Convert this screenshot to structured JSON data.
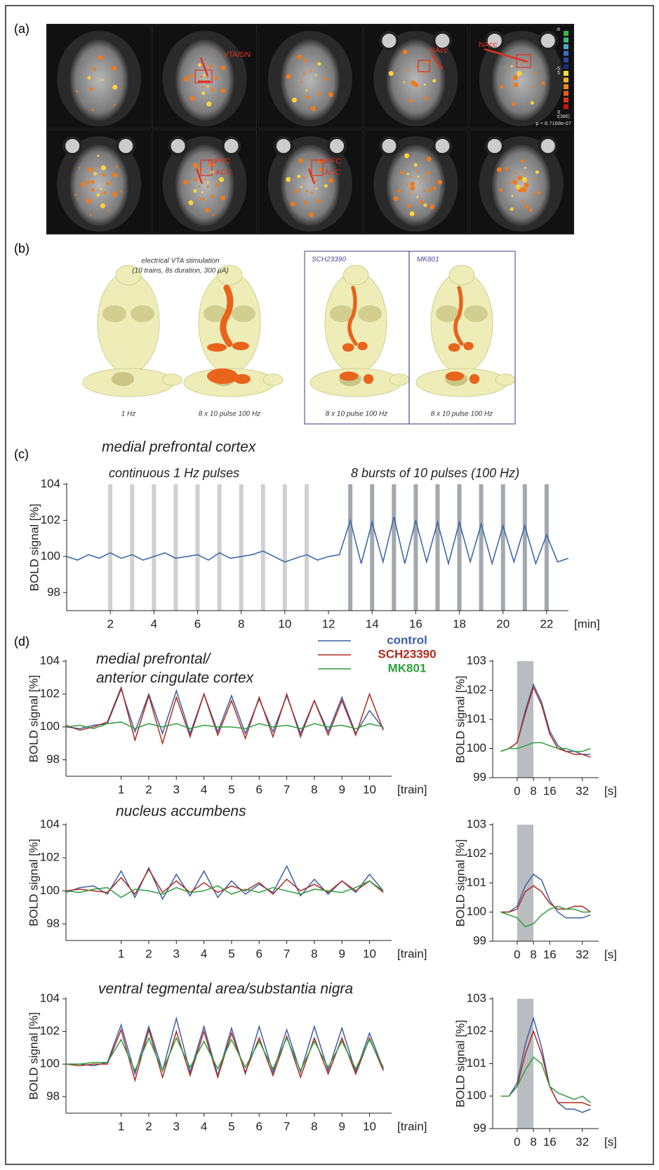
{
  "panel_labels": [
    "(a)",
    "(b)",
    "(c)",
    "(d)"
  ],
  "panel_a": {
    "region_labels": [
      "VTA/SN",
      "NAcc",
      "NAcc",
      "mPFC",
      "ACC",
      "mPFC",
      "ACC"
    ],
    "colorbar_labels": [
      "-8",
      "-5",
      "5",
      "8"
    ],
    "stat_label": "t(386)",
    "p_label": "p < 8.7168e-07"
  },
  "panel_b": {
    "title": "electrical VTA stimulation",
    "subtitle": "(10 trains, 8s duration, 300 µA)",
    "captions": [
      "1 Hz",
      "8 x 10 pulse 100 Hz",
      "8 x 10 pulse 100 Hz",
      "8 x 10 pulse 100 Hz"
    ],
    "box_labels": [
      "SCH23390",
      "MK801"
    ]
  },
  "chart_data": [
    {
      "type": "line",
      "title": "medial prefrontal cortex",
      "annotations": [
        "continuous 1 Hz pulses",
        "8 bursts of 10 pulses (100 Hz)"
      ],
      "ylabel": "BOLD signal [%]",
      "xlabel": "[min]",
      "x": [
        0,
        0.5,
        1,
        1.5,
        2,
        2.5,
        3,
        3.5,
        4,
        4.5,
        5,
        5.5,
        6,
        6.5,
        7,
        7.5,
        8,
        8.5,
        9,
        9.5,
        10,
        10.5,
        11,
        11.5,
        12,
        12.5,
        13,
        13.5,
        14,
        14.5,
        15,
        15.5,
        16,
        16.5,
        17,
        17.5,
        18,
        18.5,
        19,
        19.5,
        20,
        20.5,
        21,
        21.5,
        22,
        22.5,
        23
      ],
      "values": [
        100,
        99.8,
        100.1,
        99.9,
        100.2,
        99.9,
        100.1,
        99.8,
        100,
        100.2,
        99.9,
        100,
        100.1,
        99.8,
        100.2,
        99.9,
        100,
        100.1,
        100.3,
        100,
        99.7,
        99.9,
        100.1,
        99.8,
        100,
        100.1,
        102,
        99.6,
        101.9,
        99.7,
        102.2,
        99.6,
        102,
        99.7,
        101.9,
        99.6,
        101.9,
        99.7,
        101.8,
        99.6,
        101.7,
        99.7,
        101.7,
        99.6,
        101.2,
        99.7,
        99.9
      ],
      "color": "#3d6aa8",
      "stimuli": [
        {
          "times": [
            2,
            3,
            4,
            5,
            6,
            7,
            8,
            9,
            10,
            11
          ],
          "color": "#d0d0d0"
        },
        {
          "times": [
            13,
            14,
            15,
            16,
            17,
            18,
            19,
            20,
            21,
            22
          ],
          "color": "#a3a7ae"
        }
      ],
      "xlim": [
        0,
        23
      ],
      "ylim": [
        97,
        104
      ],
      "xticks": [
        2,
        4,
        6,
        8,
        10,
        12,
        14,
        16,
        18,
        20,
        22
      ],
      "yticks": [
        98,
        100,
        102,
        104
      ]
    },
    {
      "type": "line",
      "title": [
        "medial prefrontal/",
        "anterior cingulate cortex"
      ],
      "ylabel": "BOLD signal [%]",
      "xlabel": "[train]",
      "legend": "top",
      "x": [
        -1,
        -0.5,
        0,
        0.5,
        1,
        1.5,
        2,
        2.5,
        3,
        3.5,
        4,
        4.5,
        5,
        5.5,
        6,
        6.5,
        7,
        7.5,
        8,
        8.5,
        9,
        9.5,
        10,
        10.5
      ],
      "series": [
        {
          "name": "control",
          "color": "#3b5fa8",
          "values": [
            100,
            99.9,
            100.1,
            100.2,
            102.3,
            99.7,
            102,
            99.6,
            102.2,
            99.6,
            102,
            99.7,
            101.9,
            99.6,
            101.7,
            99.7,
            101.9,
            99.6,
            101.6,
            99.7,
            101.8,
            99.6,
            101,
            99.9
          ]
        },
        {
          "name": "SCH23390",
          "color": "#b02a1e",
          "values": [
            100.1,
            99.8,
            100,
            100.3,
            102.4,
            99.2,
            101.9,
            99,
            101.8,
            99.4,
            102,
            99.5,
            101.6,
            99.3,
            101.8,
            99.4,
            102,
            99.4,
            101.6,
            99.5,
            101.6,
            99.5,
            102,
            99.8
          ]
        },
        {
          "name": "MK801",
          "color": "#2e9e3e",
          "values": [
            100,
            100.1,
            99.9,
            100.2,
            100.3,
            99.9,
            100.2,
            100,
            100.2,
            99.9,
            100.1,
            100,
            100,
            99.9,
            100.2,
            100,
            100.1,
            99.9,
            100.2,
            100,
            100.1,
            99.9,
            100.2,
            100
          ]
        }
      ],
      "xlim": [
        -1,
        10.8
      ],
      "ylim": [
        97,
        104
      ],
      "xticks": [
        1,
        2,
        3,
        4,
        5,
        6,
        7,
        8,
        9,
        10
      ],
      "yticks": [
        98,
        100,
        102,
        104
      ]
    },
    {
      "type": "line",
      "title": "nucleus accumbens",
      "ylabel": "BOLD signal [%]",
      "xlabel": "[train]",
      "x": [
        -1,
        -0.5,
        0,
        0.5,
        1,
        1.5,
        2,
        2.5,
        3,
        3.5,
        4,
        4.5,
        5,
        5.5,
        6,
        6.5,
        7,
        7.5,
        8,
        8.5,
        9,
        9.5,
        10,
        10.5
      ],
      "series": [
        {
          "name": "control",
          "color": "#3b5fa8",
          "values": [
            99.9,
            100.2,
            100.3,
            99.8,
            101.2,
            99.6,
            101.4,
            99.5,
            101,
            99.7,
            101.2,
            99.6,
            100.6,
            99.8,
            100.4,
            99.9,
            101.5,
            99.7,
            100.7,
            99.8,
            100.6,
            99.9,
            101,
            100
          ]
        },
        {
          "name": "SCH23390",
          "color": "#b02a1e",
          "values": [
            100,
            100.1,
            100,
            99.9,
            100.8,
            99.8,
            101.3,
            99.9,
            100.6,
            99.9,
            100.5,
            99.9,
            100.3,
            100,
            100.5,
            99.8,
            100.7,
            100,
            100.4,
            99.9,
            100.6,
            100,
            100.6,
            99.9
          ]
        },
        {
          "name": "MK801",
          "color": "#2e9e3e",
          "values": [
            100,
            99.9,
            100.1,
            100.2,
            99.6,
            100.1,
            100,
            99.8,
            100.2,
            99.9,
            100,
            100.3,
            99.8,
            100.1,
            99.9,
            100.2,
            100,
            99.8,
            100.1,
            100,
            99.9,
            100.2,
            100.6,
            100
          ]
        }
      ],
      "xlim": [
        -1,
        10.8
      ],
      "ylim": [
        97,
        104
      ],
      "xticks": [
        1,
        2,
        3,
        4,
        5,
        6,
        7,
        8,
        9,
        10
      ],
      "yticks": [
        98,
        100,
        102,
        104
      ]
    },
    {
      "type": "line",
      "title": "ventral tegmental area/substantia nigra",
      "ylabel": "BOLD signal [%]",
      "xlabel": "[train]",
      "x": [
        -1,
        -0.5,
        0,
        0.5,
        1,
        1.5,
        2,
        2.5,
        3,
        3.5,
        4,
        4.5,
        5,
        5.5,
        6,
        6.5,
        7,
        7.5,
        8,
        8.5,
        9,
        9.5,
        10,
        10.5
      ],
      "series": [
        {
          "name": "control",
          "color": "#3b5fa8",
          "values": [
            100,
            100,
            99.9,
            100.1,
            102.4,
            99.4,
            102.3,
            99.6,
            102.8,
            99.5,
            102.3,
            99.3,
            102.2,
            99.4,
            102.3,
            99.5,
            102.1,
            99.5,
            102.3,
            99.6,
            102.2,
            99.5,
            101.9,
            99.7
          ]
        },
        {
          "name": "SCH23390",
          "color": "#b02a1e",
          "values": [
            100,
            99.9,
            100,
            100,
            102.1,
            99,
            102.1,
            99.2,
            102,
            99.3,
            102,
            99.2,
            101.9,
            99.5,
            101.6,
            99.3,
            101.7,
            99.2,
            101.6,
            99.4,
            101.6,
            99.4,
            101.6,
            99.6
          ]
        },
        {
          "name": "MK801",
          "color": "#2e9e3e",
          "values": [
            100,
            100,
            100.1,
            100.1,
            101.5,
            99.6,
            101.6,
            99.6,
            101.6,
            99.8,
            101.4,
            99.7,
            101.5,
            99.8,
            101.4,
            99.7,
            101.6,
            99.6,
            101.4,
            99.8,
            101.4,
            99.7,
            101.5,
            99.8
          ]
        }
      ],
      "xlim": [
        -1,
        10.8
      ],
      "ylim": [
        97,
        104
      ],
      "xticks": [
        1,
        2,
        3,
        4,
        5,
        6,
        7,
        8,
        9,
        10
      ],
      "yticks": [
        98,
        100,
        102,
        104
      ]
    },
    {
      "type": "line",
      "ylabel": "BOLD signal [%]",
      "xlabel": "[s]",
      "x": [
        -8,
        -4,
        0,
        4,
        8,
        12,
        16,
        20,
        24,
        28,
        32,
        36
      ],
      "stimulus": [
        0,
        8
      ],
      "stimulus_color": "#b9bdc0",
      "series": [
        {
          "name": "control",
          "color": "#3b5fa8",
          "values": [
            99.9,
            100,
            100.2,
            101.3,
            102.2,
            101.6,
            100.6,
            100.1,
            99.9,
            99.9,
            99.8,
            99.8
          ]
        },
        {
          "name": "SCH23390",
          "color": "#b02a1e",
          "values": [
            99.9,
            100,
            100.2,
            101.2,
            102.1,
            101.5,
            100.5,
            100,
            99.9,
            99.8,
            99.8,
            99.7
          ]
        },
        {
          "name": "MK801",
          "color": "#2e9e3e",
          "values": [
            99.9,
            100,
            100,
            100.1,
            100.2,
            100.2,
            100.1,
            100,
            100,
            99.9,
            99.9,
            100
          ]
        }
      ],
      "xlim": [
        -12,
        40
      ],
      "ylim": [
        99,
        103
      ],
      "xticks": [
        0,
        8,
        16,
        32
      ],
      "yticks": [
        99,
        100,
        101,
        102,
        103
      ]
    },
    {
      "type": "line",
      "ylabel": "BOLD signal [%]",
      "xlabel": "[s]",
      "x": [
        -8,
        -4,
        0,
        4,
        8,
        12,
        16,
        20,
        24,
        28,
        32,
        36
      ],
      "stimulus": [
        0,
        8
      ],
      "stimulus_color": "#b9bdc0",
      "series": [
        {
          "name": "control",
          "color": "#3b5fa8",
          "values": [
            100,
            100,
            100.2,
            100.9,
            101.3,
            101.1,
            100.4,
            100,
            99.8,
            99.8,
            99.8,
            99.9
          ]
        },
        {
          "name": "SCH23390",
          "color": "#b02a1e",
          "values": [
            100,
            100,
            100.1,
            100.7,
            100.9,
            100.7,
            100.3,
            100.1,
            100.1,
            100.2,
            100.2,
            100
          ]
        },
        {
          "name": "MK801",
          "color": "#2e9e3e",
          "values": [
            100,
            99.9,
            99.8,
            99.5,
            99.6,
            99.9,
            100.1,
            100.2,
            100.1,
            100.1,
            100,
            100
          ]
        }
      ],
      "xlim": [
        -12,
        40
      ],
      "ylim": [
        99,
        103
      ],
      "xticks": [
        0,
        8,
        16,
        32
      ],
      "yticks": [
        99,
        100,
        101,
        102,
        103
      ]
    },
    {
      "type": "line",
      "ylabel": "BOLD signal [%]",
      "xlabel": "[s]",
      "x": [
        -8,
        -4,
        0,
        4,
        8,
        12,
        16,
        20,
        24,
        28,
        32,
        36
      ],
      "stimulus": [
        0,
        8
      ],
      "stimulus_color": "#b9bdc0",
      "series": [
        {
          "name": "control",
          "color": "#3b5fa8",
          "values": [
            100,
            100,
            100.4,
            101.6,
            102.4,
            101.5,
            100.3,
            99.8,
            99.6,
            99.6,
            99.5,
            99.6
          ]
        },
        {
          "name": "SCH23390",
          "color": "#b02a1e",
          "values": [
            100,
            100,
            100.3,
            101.3,
            102,
            101.3,
            100.3,
            99.8,
            99.8,
            99.8,
            99.8,
            99.7
          ]
        },
        {
          "name": "MK801",
          "color": "#2e9e3e",
          "values": [
            100,
            100,
            100.3,
            100.8,
            101.2,
            101,
            100.3,
            100.1,
            100,
            99.9,
            100,
            99.8
          ]
        }
      ],
      "xlim": [
        -12,
        40
      ],
      "ylim": [
        99,
        103
      ],
      "xticks": [
        0,
        8,
        16,
        32
      ],
      "yticks": [
        99,
        100,
        101,
        102,
        103
      ]
    }
  ]
}
